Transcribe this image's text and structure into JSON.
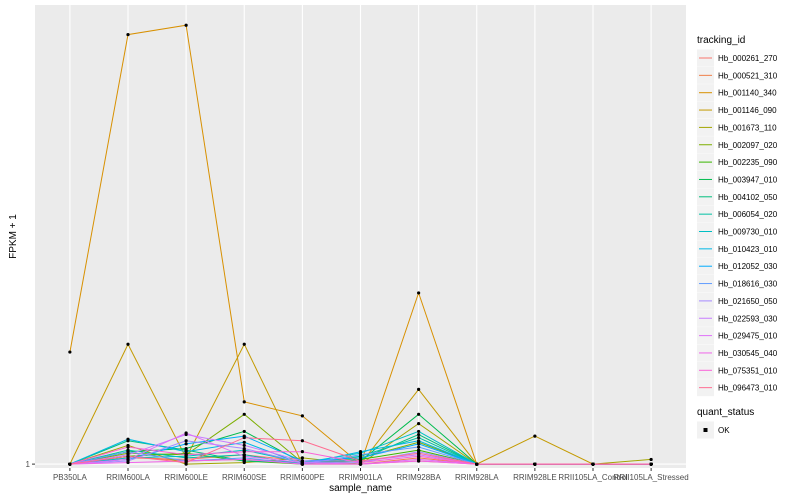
{
  "chart_data": {
    "type": "line",
    "xlabel": "sample_name",
    "ylabel": "FPKM + 1",
    "x": [
      "PB350LA",
      "RRIM600LA",
      "RRIM600LE",
      "RRIM600SE",
      "RRIM600PE",
      "RRIM901LA",
      "RRIM928BA",
      "RRIM928LA",
      "RRIM928LE",
      "RRII105LA_Control",
      "RRII105LA_Stressed"
    ],
    "y_ticks": [
      {
        "label": "1",
        "value": 1
      }
    ],
    "ylim": [
      0.75,
      30.5
    ],
    "grid": true,
    "legend": {
      "title": "tracking_id",
      "position": "right",
      "status_title": "quant_status",
      "status_items": [
        "OK"
      ]
    },
    "series": [
      {
        "name": "Hb_000261_270",
        "color": "#F8766D",
        "values": [
          1,
          1.4,
          1.3,
          1.6,
          1.2,
          1.0,
          1.2,
          1,
          1,
          1,
          1
        ]
      },
      {
        "name": "Hb_000521_310",
        "color": "#EF7F48",
        "values": [
          1,
          1.5,
          1.2,
          1.3,
          1.1,
          1.0,
          1.4,
          1,
          1,
          1,
          1
        ]
      },
      {
        "name": "Hb_001140_340",
        "color": "#D89000",
        "values": [
          8.2,
          28.6,
          29.2,
          5.0,
          4.1,
          1.0,
          12.0,
          1,
          1,
          1,
          1
        ]
      },
      {
        "name": "Hb_001146_090",
        "color": "#C49A00",
        "values": [
          1,
          8.7,
          1.4,
          8.7,
          1.0,
          1.0,
          5.8,
          1,
          2.8,
          1,
          1
        ]
      },
      {
        "name": "Hb_001673_110",
        "color": "#A3A500",
        "values": [
          1,
          2.2,
          1.0,
          1.1,
          1.4,
          1.0,
          3.6,
          1,
          1,
          1,
          1.3
        ]
      },
      {
        "name": "Hb_002097_020",
        "color": "#7CAE00",
        "values": [
          1,
          1.7,
          1.6,
          4.2,
          1.1,
          1.4,
          2.4,
          1,
          1,
          1,
          1
        ]
      },
      {
        "name": "Hb_002235_090",
        "color": "#39B600",
        "values": [
          1,
          1.5,
          1.7,
          1.2,
          1.0,
          1.3,
          1.9,
          1,
          1,
          1,
          1
        ]
      },
      {
        "name": "Hb_003947_010",
        "color": "#00BB4E",
        "values": [
          1,
          1.8,
          2.0,
          3.1,
          1.1,
          1.2,
          4.2,
          1,
          1,
          1,
          1
        ]
      },
      {
        "name": "Hb_004102_050",
        "color": "#00BF7D",
        "values": [
          1,
          2.5,
          1.9,
          1.2,
          1.1,
          1.3,
          2.9,
          1,
          1,
          1,
          1
        ]
      },
      {
        "name": "Hb_006054_020",
        "color": "#00C1A3",
        "values": [
          1,
          1.9,
          1.4,
          1.6,
          1.0,
          1.5,
          2.7,
          1,
          1,
          1,
          1
        ]
      },
      {
        "name": "Hb_009730_010",
        "color": "#00BFC4",
        "values": [
          1,
          1.4,
          1.5,
          1.9,
          1.1,
          1.7,
          3.1,
          1,
          1,
          1,
          1
        ]
      },
      {
        "name": "Hb_010423_010",
        "color": "#00B8E5",
        "values": [
          1,
          2.6,
          1.8,
          2.4,
          1.0,
          1.8,
          2.5,
          1,
          1,
          1,
          1
        ]
      },
      {
        "name": "Hb_012052_030",
        "color": "#00ABFD",
        "values": [
          1,
          1.3,
          2.3,
          2.8,
          1.2,
          1.4,
          2.3,
          1,
          1,
          1,
          1
        ]
      },
      {
        "name": "Hb_018616_030",
        "color": "#619CFF",
        "values": [
          1,
          1.8,
          1.2,
          1.4,
          1.0,
          1.6,
          2.1,
          1,
          1,
          1,
          1
        ]
      },
      {
        "name": "Hb_021650_050",
        "color": "#A58AFF",
        "values": [
          1,
          1.2,
          2.5,
          2.0,
          1.1,
          1.1,
          1.8,
          1,
          1,
          1,
          1
        ]
      },
      {
        "name": "Hb_022593_030",
        "color": "#C77CFF",
        "values": [
          1,
          1.6,
          2.9,
          2.2,
          1.2,
          1.2,
          1.6,
          1,
          1,
          1,
          1
        ]
      },
      {
        "name": "Hb_029475_010",
        "color": "#DF70F8",
        "values": [
          1,
          1.3,
          3.0,
          1.5,
          1.1,
          1.0,
          1.3,
          1,
          1,
          1,
          1
        ]
      },
      {
        "name": "Hb_030545_040",
        "color": "#F066EA",
        "values": [
          1,
          1.1,
          1.2,
          1.3,
          1.0,
          1.0,
          1.2,
          1,
          1,
          1,
          1
        ]
      },
      {
        "name": "Hb_075351_010",
        "color": "#FA62D8",
        "values": [
          1,
          2.1,
          1.6,
          1.8,
          1.8,
          1.1,
          1.5,
          1,
          1,
          1,
          1
        ]
      },
      {
        "name": "Hb_096473_010",
        "color": "#FF6C91",
        "values": [
          1,
          1.5,
          1.1,
          2.7,
          2.5,
          1.2,
          1.7,
          1,
          1,
          1,
          1
        ]
      }
    ]
  }
}
